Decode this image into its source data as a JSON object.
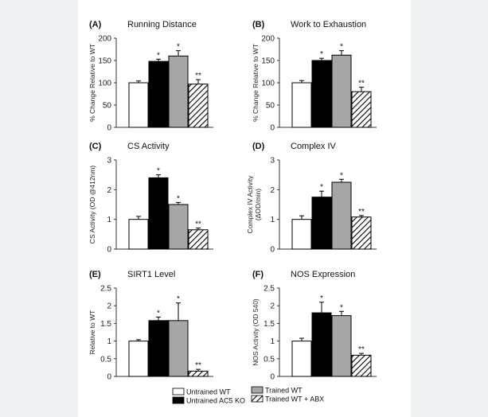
{
  "colors": {
    "untrained_wt": "#ffffff",
    "untrained_ac5ko": "#000000",
    "trained_wt": "#a6a6a6",
    "trained_wt_abx": "hatched",
    "background": "#eef2f2"
  },
  "legend": {
    "items": [
      {
        "label": "Untrained WT",
        "style": "white"
      },
      {
        "label": "Untrained AC5 KO",
        "style": "black"
      },
      {
        "label": "Trained WT",
        "style": "gray"
      },
      {
        "label": "Trained WT + ABX",
        "style": "hatch"
      }
    ]
  },
  "chart_data": [
    {
      "panel": "(A)",
      "title": "Running Distance",
      "type": "bar",
      "ylabel": "% Change Relative to WT",
      "ylim": [
        0,
        200
      ],
      "yticks": [
        0,
        50,
        100,
        150,
        200
      ],
      "ytick_labels": [
        "0",
        "50",
        "100",
        "150",
        "200"
      ],
      "values": [
        100,
        148,
        160,
        97
      ],
      "errors": [
        4,
        5,
        12,
        10
      ],
      "annotations": [
        "",
        "*",
        "*",
        "**"
      ]
    },
    {
      "panel": "(B)",
      "title": "Work to Exhaustion",
      "type": "bar",
      "ylabel": "% Change Relative to WT",
      "ylim": [
        0,
        200
      ],
      "yticks": [
        0,
        50,
        100,
        150,
        200
      ],
      "ytick_labels": [
        "0",
        "50",
        "100",
        "150",
        "200"
      ],
      "values": [
        100,
        150,
        162,
        80
      ],
      "errors": [
        5,
        5,
        10,
        10
      ],
      "annotations": [
        "",
        "*",
        "*",
        "**"
      ]
    },
    {
      "panel": "(C)",
      "title": "CS Activity",
      "type": "bar",
      "ylabel": "CS Activity (OD @412nm)",
      "ylim": [
        0,
        3
      ],
      "yticks": [
        0,
        1,
        2,
        3
      ],
      "ytick_labels": [
        "0",
        "1",
        "2",
        "3"
      ],
      "values": [
        1.0,
        2.4,
        1.5,
        0.65
      ],
      "errors": [
        0.1,
        0.1,
        0.07,
        0.06
      ],
      "annotations": [
        "",
        "*",
        "*",
        "**"
      ]
    },
    {
      "panel": "(D)",
      "title": "Complex IV",
      "type": "bar",
      "ylabel": "Complex IV Activity",
      "ylabel2": "(ΔOD/min)",
      "ylim": [
        0,
        3
      ],
      "yticks": [
        0,
        1,
        2,
        3
      ],
      "ytick_labels": [
        "0",
        "1",
        "2",
        "3"
      ],
      "values": [
        1.0,
        1.75,
        2.25,
        1.08
      ],
      "errors": [
        0.12,
        0.2,
        0.1,
        0.05
      ],
      "annotations": [
        "",
        "*",
        "*",
        "**"
      ]
    },
    {
      "panel": "(E)",
      "title": "SIRT1 Level",
      "type": "bar",
      "ylabel": "Relative to WT",
      "ylim": [
        0,
        2.5
      ],
      "yticks": [
        0,
        0.5,
        1,
        1.5,
        2,
        2.5
      ],
      "ytick_labels": [
        "0",
        "0.5",
        "1",
        "1.5",
        "2",
        "2.5"
      ],
      "values": [
        1.0,
        1.58,
        1.58,
        0.15
      ],
      "errors": [
        0.04,
        0.1,
        0.5,
        0.05
      ],
      "annotations": [
        "",
        "*",
        "*",
        "**"
      ]
    },
    {
      "panel": "(F)",
      "title": "NOS Expression",
      "type": "bar",
      "ylabel": "NOS Activity (OD 540)",
      "ylim": [
        0,
        2.5
      ],
      "yticks": [
        0,
        0.5,
        1,
        1.5,
        2,
        2.5
      ],
      "ytick_labels": [
        "0",
        "0.5",
        "1",
        "1.5",
        "2",
        "2.5"
      ],
      "values": [
        1.0,
        1.8,
        1.72,
        0.6
      ],
      "errors": [
        0.08,
        0.3,
        0.12,
        0.05
      ],
      "annotations": [
        "",
        "*",
        "*",
        "**"
      ]
    }
  ]
}
